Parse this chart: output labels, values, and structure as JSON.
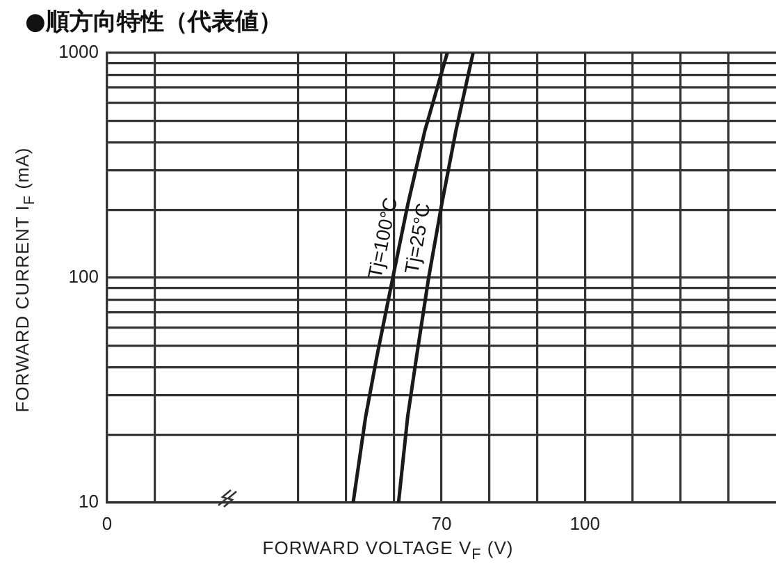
{
  "chart_data": {
    "type": "line",
    "title": "●順方向特性（代表値）",
    "xlabel": "FORWARD VOLTAGE V$_{F}$ (V)",
    "ylabel": "FORWARD CURRENT I$_{F}$ (mA)",
    "log": "y",
    "grid": true,
    "legend": false,
    "marker": "none",
    "line_style": "solid",
    "xlim": [
      0,
      140
    ],
    "xticks": [
      0,
      {
        "value": 10,
        "label": null
      },
      {
        "value": 40,
        "label": null
      },
      {
        "value": 50,
        "label": null
      },
      {
        "value": 60,
        "label": null
      },
      70,
      {
        "value": 80,
        "label": null
      },
      {
        "value": 90,
        "label": null
      },
      100,
      {
        "value": 110,
        "label": null
      },
      {
        "value": 120,
        "label": null
      },
      {
        "value": 130,
        "label": null
      }
    ],
    "ylim": [
      10,
      1000
    ],
    "yticks": [
      10,
      {
        "value": 20,
        "label": null
      },
      {
        "value": 30,
        "label": null
      },
      {
        "value": 40,
        "label": null
      },
      {
        "value": 50,
        "label": null
      },
      {
        "value": 60,
        "label": null
      },
      {
        "value": 70,
        "label": null
      },
      {
        "value": 80,
        "label": null
      },
      {
        "value": 90,
        "label": null
      },
      100,
      {
        "value": 200,
        "label": null
      },
      {
        "value": 300,
        "label": null
      },
      {
        "value": 400,
        "label": null
      },
      {
        "value": 500,
        "label": null
      },
      {
        "value": 600,
        "label": null
      },
      {
        "value": 700,
        "label": null
      },
      {
        "value": 800,
        "label": null
      },
      {
        "value": 900,
        "label": null
      },
      1000
    ],
    "series": [
      {
        "name": "Tj=100°C",
        "color": "#1a1a1a",
        "x": [
          51.5,
          54.1,
          56.5,
          59.8,
          62.9,
          66.5,
          71.2
        ],
        "values": [
          10,
          24,
          45,
          100,
          210,
          450,
          1000
        ]
      },
      {
        "name": "Tj=25°C",
        "color": "#1a1a1a",
        "x": [
          61,
          62.9,
          64.8,
          67.3,
          70,
          73,
          76.6
        ],
        "values": [
          10,
          24,
          45,
          100,
          210,
          450,
          1000
        ]
      }
    ]
  }
}
